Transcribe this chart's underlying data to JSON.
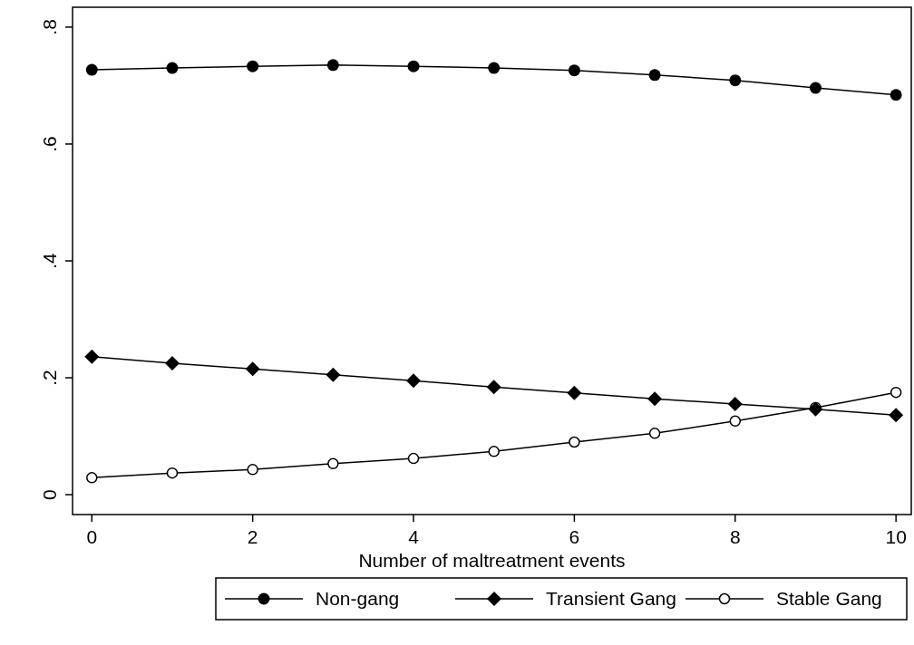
{
  "chart_data": {
    "type": "line",
    "xlabel": "Number of maltreatment events",
    "x": [
      0,
      1,
      2,
      3,
      4,
      5,
      6,
      7,
      8,
      9,
      10
    ],
    "xlim": [
      -0.24,
      10.19
    ],
    "xticks": [
      0,
      2,
      4,
      6,
      8,
      10
    ],
    "ylim": [
      -0.034,
      0.834
    ],
    "yticks": [
      0,
      {
        "value": 0.2,
        "label": ".2"
      },
      {
        "value": 0.4,
        "label": ".4"
      },
      {
        "value": 0.6,
        "label": ".6"
      },
      {
        "value": 0.8,
        "label": ".8"
      }
    ],
    "grid": false,
    "legend": "bottom",
    "series": [
      {
        "name": "Non-gang",
        "color": "#000000",
        "marker": "circle",
        "values": [
          0.727,
          0.73,
          0.733,
          0.735,
          0.733,
          0.73,
          0.726,
          0.718,
          0.709,
          0.696,
          0.684
        ]
      },
      {
        "name": "Transient Gang",
        "color": "#000000",
        "marker": "diamond",
        "values": [
          0.236,
          0.225,
          0.215,
          0.205,
          0.195,
          0.184,
          0.174,
          0.164,
          0.155,
          0.146,
          0.136
        ]
      },
      {
        "name": "Stable Gang",
        "color": "#000000",
        "marker": "hollow-circle",
        "values": [
          0.029,
          0.037,
          0.043,
          0.053,
          0.062,
          0.074,
          0.09,
          0.105,
          0.126,
          0.149,
          0.175
        ]
      }
    ]
  }
}
